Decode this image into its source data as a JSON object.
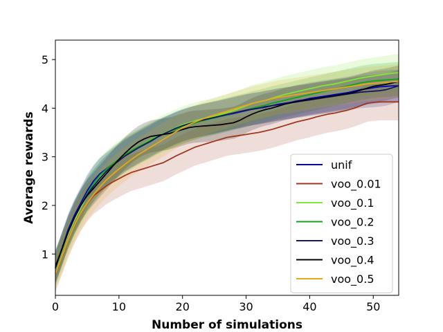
{
  "chart_data": {
    "type": "line",
    "title": "",
    "xlabel": "Number of simulations",
    "ylabel": "Average rewards",
    "xlim": [
      0,
      54
    ],
    "ylim": [
      0.15,
      5.4
    ],
    "xticks": [
      0,
      10,
      20,
      30,
      40,
      50
    ],
    "yticks": [
      1,
      2,
      3,
      4,
      5
    ],
    "grid": false,
    "legend": "lower right",
    "x": [
      0,
      1,
      2,
      3,
      4,
      5,
      6,
      7,
      8,
      9,
      10,
      11,
      12,
      13,
      14,
      15,
      16,
      17,
      18,
      19,
      20,
      21,
      22,
      23,
      24,
      25,
      26,
      27,
      28,
      29,
      30,
      31,
      32,
      33,
      34,
      35,
      36,
      37,
      38,
      39,
      40,
      41,
      42,
      43,
      44,
      45,
      46,
      47,
      48,
      49,
      50,
      51,
      52,
      53,
      54
    ],
    "series": [
      {
        "name": "unif",
        "color": "#0000cc",
        "values": [
          0.7,
          1.1,
          1.5,
          1.8,
          2.05,
          2.3,
          2.5,
          2.65,
          2.75,
          2.85,
          2.95,
          3.05,
          3.12,
          3.2,
          3.28,
          3.35,
          3.42,
          3.48,
          3.54,
          3.6,
          3.65,
          3.7,
          3.72,
          3.75,
          3.78,
          3.8,
          3.83,
          3.86,
          3.89,
          3.92,
          3.95,
          3.98,
          4.0,
          4.02,
          4.05,
          4.08,
          4.1,
          4.12,
          4.15,
          4.17,
          4.2,
          4.22,
          4.24,
          4.26,
          4.28,
          4.3,
          4.32,
          4.35,
          4.38,
          4.4,
          4.42,
          4.44,
          4.45,
          4.46,
          4.46
        ],
        "band": 0.33
      },
      {
        "name": "voo_0.01",
        "color": "#a0361c",
        "values": [
          0.6,
          0.95,
          1.3,
          1.6,
          1.85,
          2.05,
          2.2,
          2.3,
          2.4,
          2.48,
          2.55,
          2.62,
          2.68,
          2.72,
          2.76,
          2.8,
          2.84,
          2.88,
          2.95,
          3.02,
          3.08,
          3.14,
          3.2,
          3.24,
          3.28,
          3.32,
          3.36,
          3.4,
          3.42,
          3.44,
          3.46,
          3.48,
          3.5,
          3.53,
          3.56,
          3.6,
          3.64,
          3.68,
          3.72,
          3.75,
          3.78,
          3.82,
          3.85,
          3.88,
          3.9,
          3.93,
          3.96,
          4.0,
          4.05,
          4.1,
          4.12,
          4.13,
          4.13,
          4.13,
          4.13
        ],
        "band": 0.38
      },
      {
        "name": "voo_0.1",
        "color": "#7fe832",
        "values": [
          0.7,
          1.05,
          1.4,
          1.7,
          1.95,
          2.2,
          2.42,
          2.6,
          2.74,
          2.85,
          2.95,
          3.05,
          3.13,
          3.2,
          3.28,
          3.35,
          3.42,
          3.48,
          3.54,
          3.6,
          3.66,
          3.7,
          3.74,
          3.78,
          3.8,
          3.83,
          3.87,
          3.91,
          3.95,
          4.0,
          4.05,
          4.1,
          4.13,
          4.16,
          4.2,
          4.24,
          4.28,
          4.31,
          4.34,
          4.37,
          4.4,
          4.43,
          4.46,
          4.48,
          4.5,
          4.53,
          4.56,
          4.59,
          4.62,
          4.64,
          4.66,
          4.68,
          4.7,
          4.72,
          4.73
        ],
        "band": 0.38
      },
      {
        "name": "voo_0.2",
        "color": "#0fa31c",
        "values": [
          0.7,
          1.08,
          1.45,
          1.75,
          2.0,
          2.25,
          2.45,
          2.62,
          2.74,
          2.85,
          2.95,
          3.05,
          3.13,
          3.2,
          3.27,
          3.34,
          3.41,
          3.47,
          3.52,
          3.57,
          3.62,
          3.66,
          3.7,
          3.74,
          3.77,
          3.8,
          3.83,
          3.86,
          3.9,
          3.93,
          3.96,
          4.0,
          4.03,
          4.06,
          4.1,
          4.13,
          4.16,
          4.19,
          4.22,
          4.25,
          4.28,
          4.31,
          4.34,
          4.37,
          4.4,
          4.43,
          4.46,
          4.49,
          4.52,
          4.54,
          4.56,
          4.57,
          4.58,
          4.59,
          4.6
        ],
        "band": 0.35
      },
      {
        "name": "voo_0.3",
        "color": "#141466",
        "values": [
          0.75,
          1.1,
          1.45,
          1.75,
          2.0,
          2.22,
          2.4,
          2.56,
          2.7,
          2.82,
          2.92,
          3.02,
          3.1,
          3.18,
          3.25,
          3.32,
          3.4,
          3.47,
          3.53,
          3.59,
          3.64,
          3.68,
          3.72,
          3.75,
          3.78,
          3.81,
          3.84,
          3.87,
          3.9,
          3.93,
          3.96,
          3.98,
          4.0,
          4.03,
          4.05,
          4.07,
          4.09,
          4.11,
          4.13,
          4.15,
          4.17,
          4.19,
          4.21,
          4.23,
          4.25,
          4.27,
          4.29,
          4.31,
          4.33,
          4.34,
          4.35,
          4.36,
          4.38,
          4.42,
          4.46
        ],
        "band": 0.33
      },
      {
        "name": "voo_0.4",
        "color": "#000000",
        "values": [
          0.72,
          1.08,
          1.45,
          1.75,
          2.0,
          2.2,
          2.35,
          2.5,
          2.65,
          2.8,
          2.95,
          3.08,
          3.2,
          3.3,
          3.37,
          3.42,
          3.44,
          3.46,
          3.48,
          3.52,
          3.56,
          3.6,
          3.62,
          3.63,
          3.64,
          3.65,
          3.66,
          3.68,
          3.7,
          3.75,
          3.82,
          3.88,
          3.93,
          3.97,
          4.0,
          4.04,
          4.08,
          4.11,
          4.14,
          4.16,
          4.18,
          4.2,
          4.22,
          4.24,
          4.26,
          4.28,
          4.3,
          4.33,
          4.37,
          4.41,
          4.45,
          4.47,
          4.49,
          4.52,
          4.55
        ],
        "band": 0.33
      },
      {
        "name": "voo_0.5",
        "color": "#e6a817",
        "values": [
          0.6,
          0.95,
          1.3,
          1.6,
          1.85,
          2.05,
          2.22,
          2.38,
          2.52,
          2.64,
          2.75,
          2.85,
          2.95,
          3.04,
          3.12,
          3.2,
          3.28,
          3.36,
          3.44,
          3.52,
          3.6,
          3.66,
          3.72,
          3.77,
          3.82,
          3.86,
          3.9,
          3.94,
          3.98,
          4.02,
          4.06,
          4.1,
          4.13,
          4.16,
          4.19,
          4.22,
          4.24,
          4.26,
          4.28,
          4.3,
          4.32,
          4.34,
          4.36,
          4.38,
          4.4,
          4.42,
          4.44,
          4.46,
          4.48,
          4.5,
          4.51,
          4.52,
          4.53,
          4.54,
          4.55
        ],
        "band": 0.35
      }
    ]
  }
}
